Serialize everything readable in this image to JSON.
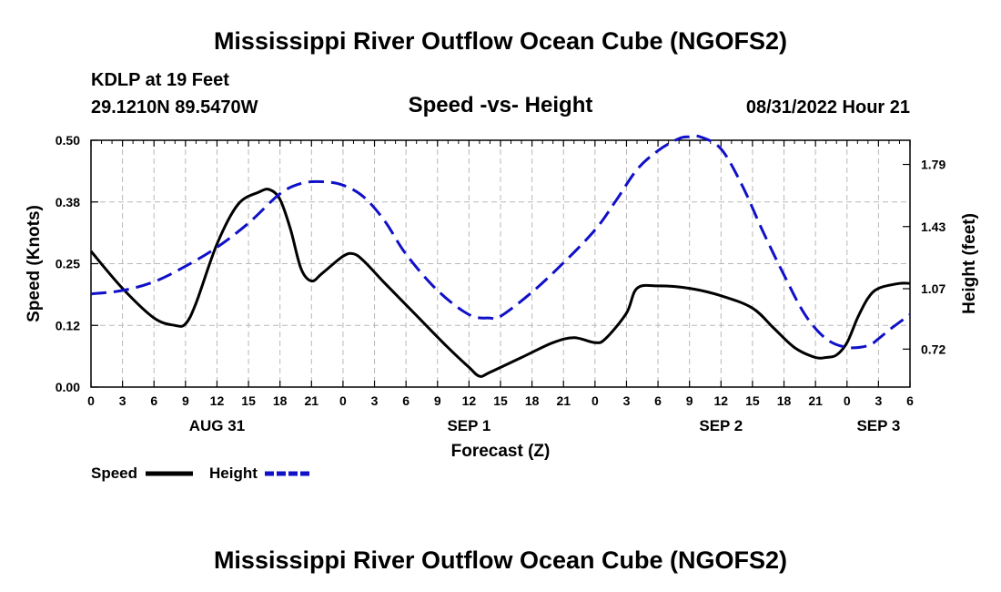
{
  "page": {
    "title": "Mississippi River Outflow Ocean Cube (NGOFS2)",
    "footer_title": "Mississippi River Outflow Ocean Cube (NGOFS2)",
    "station": "KDLP at 19 Feet",
    "coords": "29.1210N  89.5470W",
    "subtitle": "Speed -vs- Height",
    "datetime": "08/31/2022 Hour 21"
  },
  "chart_data": {
    "type": "line",
    "title": "Speed -vs- Height",
    "xlabel": "Forecast (Z)",
    "ylabel": "Speed (Knots)",
    "y2label": "Height (feet)",
    "x_unit": "forecast hours from 00Z Aug 31",
    "xlim": [
      0,
      78
    ],
    "ylim": [
      0,
      0.5
    ],
    "y2lim": [
      0.5,
      1.93
    ],
    "x_ticks": [
      0,
      3,
      6,
      9,
      12,
      15,
      18,
      21,
      24,
      27,
      30,
      33,
      36,
      39,
      42,
      45,
      48,
      51,
      54,
      57,
      60,
      63,
      66,
      69,
      72,
      75,
      78
    ],
    "x_tick_labels": [
      "0",
      "3",
      "6",
      "9",
      "12",
      "15",
      "18",
      "21",
      "0",
      "3",
      "6",
      "9",
      "12",
      "15",
      "18",
      "21",
      "0",
      "3",
      "6",
      "9",
      "12",
      "15",
      "18",
      "21",
      "0",
      "3",
      "6"
    ],
    "date_labels": [
      {
        "x": 12,
        "label": "AUG 31"
      },
      {
        "x": 36,
        "label": "SEP 1"
      },
      {
        "x": 60,
        "label": "SEP 2"
      },
      {
        "x": 75,
        "label": "SEP 3"
      }
    ],
    "y_ticks": [
      0.0,
      0.125,
      0.25,
      0.375,
      0.5
    ],
    "y_tick_labels": [
      "0.00",
      "0.12",
      "0.25",
      "0.38",
      "0.50"
    ],
    "y2_ticks": [
      0.72,
      1.07,
      1.43,
      1.79
    ],
    "y2_tick_labels": [
      "0.72",
      "1.07",
      "1.43",
      "1.79"
    ],
    "grid": true,
    "series": [
      {
        "name": "Speed",
        "axis": "left",
        "color": "#000000",
        "style": "solid",
        "x": [
          0,
          3,
          6,
          8,
          9,
          10,
          12,
          14,
          16,
          17,
          18,
          19,
          20,
          21,
          22,
          24,
          25,
          26,
          28,
          31,
          34,
          36,
          37,
          38,
          41,
          44,
          46,
          48,
          49,
          51,
          52,
          54,
          57,
          60,
          63,
          65,
          67,
          69,
          70,
          71,
          72,
          73,
          74,
          75,
          77,
          78
        ],
        "values": [
          0.275,
          0.2,
          0.14,
          0.125,
          0.128,
          0.17,
          0.29,
          0.37,
          0.395,
          0.4,
          0.38,
          0.32,
          0.24,
          0.215,
          0.23,
          0.265,
          0.27,
          0.255,
          0.21,
          0.145,
          0.08,
          0.04,
          0.022,
          0.03,
          0.06,
          0.09,
          0.1,
          0.09,
          0.098,
          0.15,
          0.2,
          0.205,
          0.2,
          0.185,
          0.16,
          0.12,
          0.08,
          0.06,
          0.06,
          0.065,
          0.09,
          0.14,
          0.18,
          0.2,
          0.21,
          0.21
        ]
      },
      {
        "name": "Height",
        "axis": "right",
        "color": "#1010c8",
        "style": "dashed",
        "x": [
          0,
          3,
          6,
          9,
          12,
          15,
          18,
          20,
          22,
          24,
          26,
          28,
          30,
          33,
          36,
          38,
          39,
          42,
          45,
          48,
          50,
          52,
          54,
          56,
          57,
          58,
          60,
          62,
          64,
          66,
          68,
          70,
          72,
          74,
          75,
          76,
          78
        ],
        "values": [
          1.04,
          1.06,
          1.11,
          1.2,
          1.31,
          1.45,
          1.62,
          1.68,
          1.69,
          1.67,
          1.6,
          1.46,
          1.27,
          1.06,
          0.92,
          0.9,
          0.91,
          1.05,
          1.22,
          1.41,
          1.58,
          1.76,
          1.87,
          1.94,
          1.95,
          1.95,
          1.88,
          1.67,
          1.4,
          1.15,
          0.92,
          0.78,
          0.73,
          0.74,
          0.78,
          0.83,
          0.92
        ]
      }
    ],
    "legend": [
      {
        "label": "Speed",
        "color": "#000000",
        "style": "solid"
      },
      {
        "label": "Height",
        "color": "#1010c8",
        "style": "dashed"
      }
    ]
  }
}
